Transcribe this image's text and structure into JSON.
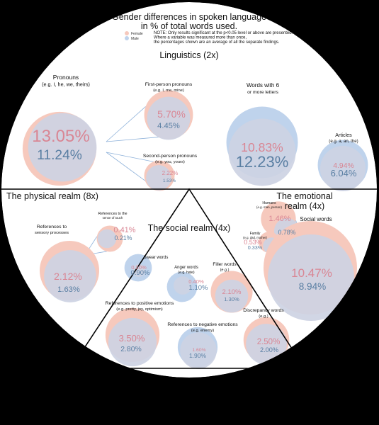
{
  "colors": {
    "female": "#f6c9bd",
    "male": "#bfd3ec",
    "overlap": "#cdd3e3",
    "female_text": "#d98694",
    "male_text": "#5a7fa3",
    "connector": "#8fb2da",
    "background": "#000000",
    "disc": "#ffffff"
  },
  "chart_data": {
    "type": "bubble",
    "title_lines": [
      "Gender differences in spoken language",
      "in % of total words used."
    ],
    "notes": [
      "NOTE: Only results significant at the p<0.05 level or above are presented.",
      "Where a variable was measured more than once,",
      "the percentages shown are an average of all the separate findings."
    ],
    "legend": [
      {
        "key": "female",
        "label": "Female"
      },
      {
        "key": "male",
        "label": "Male"
      }
    ],
    "sections": [
      {
        "name": "Linguistics (2x)",
        "scale": "2x",
        "items": [
          {
            "label": "Pronouns",
            "sublabel": "(e.g. I, he, we, theirs)",
            "female": 13.05,
            "male": 11.24,
            "female_label": "13.05%",
            "male_label": "11.24%"
          },
          {
            "label": "First-person pronouns",
            "sublabel": "(e.g. I, me, mine)",
            "female": 5.7,
            "male": 4.45,
            "female_label": "5.70%",
            "male_label": "4.45%"
          },
          {
            "label": "Second-person pronouns",
            "sublabel": "(e.g. you, yours)",
            "female": 2.22,
            "male": 1.53,
            "female_label": "2.22%",
            "male_label": "1.53%"
          },
          {
            "label": "Words with 6",
            "sublabel": "or more letters",
            "female": 10.83,
            "male": 12.23,
            "female_label": "10.83%",
            "male_label": "12.23%"
          },
          {
            "label": "Articles",
            "sublabel": "(e.g. a, an, the)",
            "female": 4.94,
            "male": 6.04,
            "female_label": "4.94%",
            "male_label": "6.04%"
          }
        ]
      },
      {
        "name": "The physical realm (8x)",
        "scale": "8x",
        "items": [
          {
            "label": "References to",
            "sublabel": "sensory processes",
            "female": 2.12,
            "male": 1.63,
            "female_label": "2.12%",
            "male_label": "1.63%"
          },
          {
            "label": "References to the",
            "sublabel": "sense of touch",
            "female": 0.41,
            "male": 0.21,
            "female_label": "0.41%",
            "male_label": "0.21%"
          }
        ]
      },
      {
        "name": "The emotional realm (4x)",
        "name_lines": [
          "The emotional",
          "realm (4x)"
        ],
        "scale": "4x",
        "items": [
          {
            "label": "Swear words",
            "sublabel": "",
            "female": 0.2,
            "male": 0.9,
            "female_label": "0.20%",
            "male_label": "0.90%"
          },
          {
            "label": "Anger words",
            "sublabel": "(e.g. hate)",
            "female": 0.4,
            "male": 1.1,
            "female_label": "0.40%",
            "male_label": "1.10%"
          },
          {
            "label": "Filler words",
            "sublabel": "(e.g.)",
            "female": 2.1,
            "male": 1.3,
            "female_label": "2.10%",
            "male_label": "1.30%"
          },
          {
            "label": "References to positive emotions",
            "sublabel": "(e.g. pretty, joy, optimism)",
            "female": 3.5,
            "male": 2.8,
            "female_label": "3.50%",
            "male_label": "2.80%"
          },
          {
            "label": "References to negative emotions",
            "sublabel": "(e.g. enemy)",
            "female": 1.6,
            "male": 1.9,
            "female_label": "1.60%",
            "male_label": "1.90%"
          },
          {
            "label": "Discrepancy words",
            "sublabel": "(e.g.)",
            "female": 2.5,
            "male": 2.0,
            "female_label": "2.50%",
            "male_label": "2.00%"
          }
        ]
      },
      {
        "name": "The social realm (4x)",
        "scale": "4x",
        "items": [
          {
            "label": "Humans",
            "sublabel": "(e.g. man, person)",
            "female": 1.46,
            "male": 0.78,
            "female_label": "1.46%",
            "male_label": "0.78%"
          },
          {
            "label": "Family",
            "sublabel": "(e.g. dad, mother)",
            "female": 0.53,
            "male": 0.33,
            "female_label": "0.53%",
            "male_label": "0.33%"
          },
          {
            "label": "Social words",
            "sublabel": "",
            "female": 10.47,
            "male": 8.94,
            "female_label": "10.47%",
            "male_label": "8.94%"
          }
        ]
      }
    ]
  }
}
